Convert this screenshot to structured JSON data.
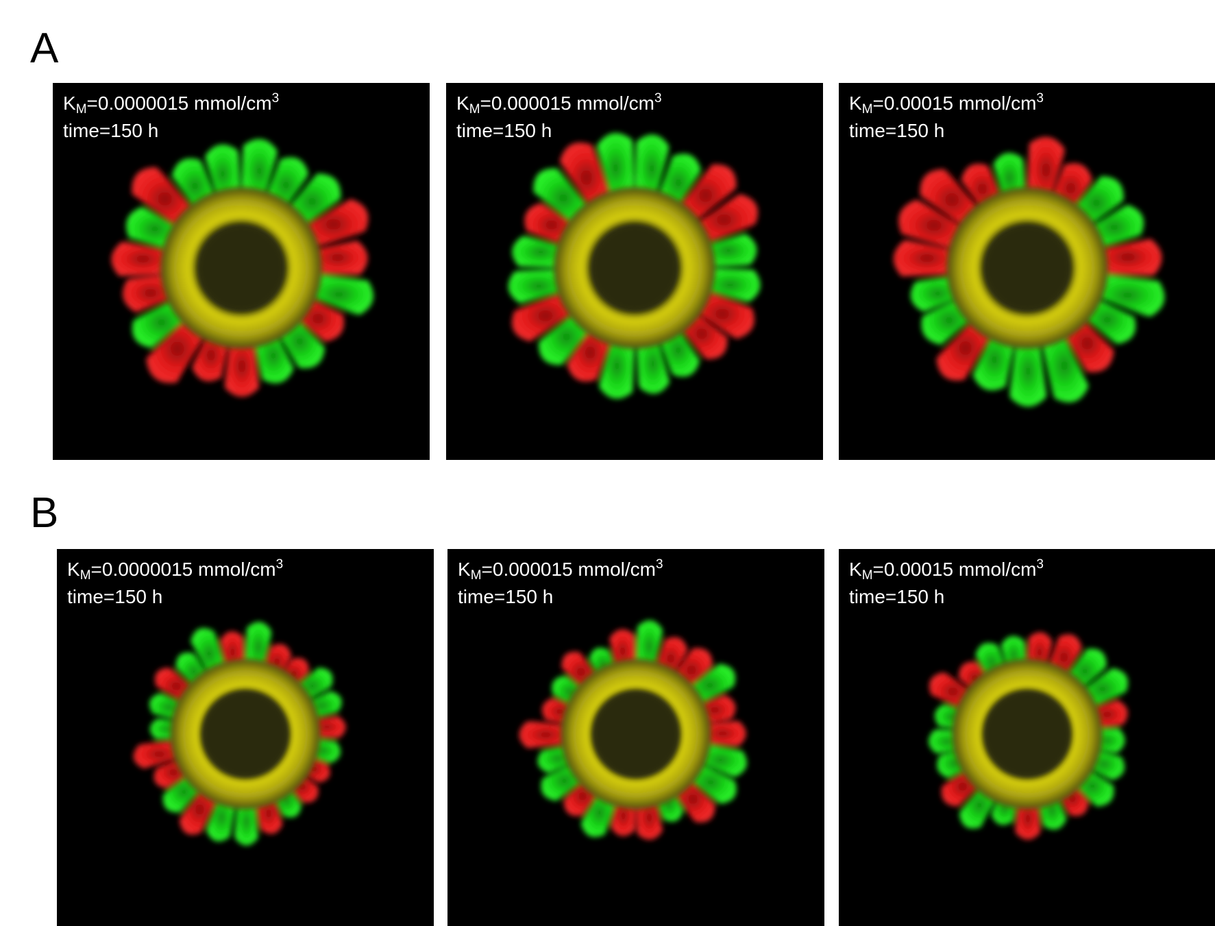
{
  "figure": {
    "panels": [
      {
        "letter": "A",
        "tiles": [
          {
            "km_symbol": "K",
            "km_sub": "M",
            "km_text": "=0.0000015 mmol/cm",
            "km_sup": "3",
            "time": "time=150 h"
          },
          {
            "km_symbol": "K",
            "km_sub": "M",
            "km_text": "=0.000015 mmol/cm",
            "km_sup": "3",
            "time": "time=150 h"
          },
          {
            "km_symbol": "K",
            "km_sub": "M",
            "km_text": "=0.00015 mmol/cm",
            "km_sup": "3",
            "time": "time=150 h"
          }
        ]
      },
      {
        "letter": "B",
        "tiles": [
          {
            "km_symbol": "K",
            "km_sub": "M",
            "km_text": "=0.0000015 mmol/cm",
            "km_sup": "3",
            "time": "time=150 h"
          },
          {
            "km_symbol": "K",
            "km_sub": "M",
            "km_text": "=0.000015 mmol/cm",
            "km_sup": "3",
            "time": "time=150 h"
          },
          {
            "km_symbol": "K",
            "km_sub": "M",
            "km_text": "=0.00015 mmol/cm",
            "km_sup": "3",
            "time": "time=150 h"
          }
        ]
      }
    ],
    "colors": {
      "background": "#000000",
      "green_cells": "#19d419",
      "red_cells": "#e01a1a",
      "yellow_band": "#d8d010",
      "core": "#2a2a08"
    }
  }
}
